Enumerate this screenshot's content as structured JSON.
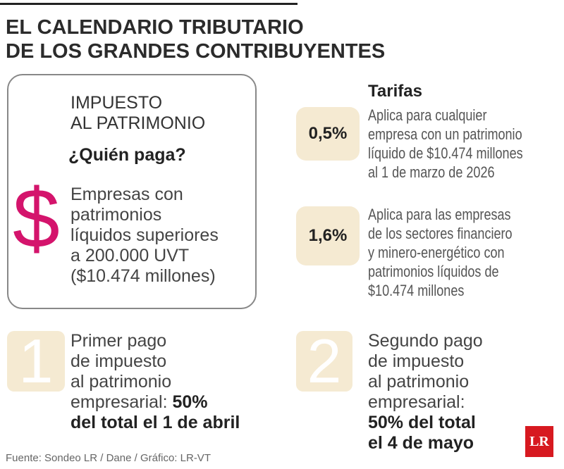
{
  "header": {
    "title": [
      "EL CALENDARIO TRIBUTARIO",
      "DE LOS GRANDES CONTRIBUYENTES"
    ]
  },
  "tax_box": {
    "heading": [
      "IMPUESTO",
      "AL PATRIMONIO"
    ],
    "question": "¿Quién paga?",
    "symbol": "$",
    "description": [
      "Empresas con",
      "patrimonios",
      "líquidos superiores",
      "a 200.000 UVT",
      "($10.474 millones)"
    ]
  },
  "rates": {
    "heading": "Tarifas",
    "items": [
      {
        "rate": "0,5%",
        "lines": [
          "Aplica para cualquier",
          "empresa con un patrimonio",
          "líquido de $10.474 millones",
          "al 1 de marzo de 2026"
        ]
      },
      {
        "rate": "1,6%",
        "lines": [
          "Aplica para las empresas",
          "de los sectores financiero",
          "y minero-energético con",
          "patrimonios líquidos de",
          "$10.474 millones"
        ]
      }
    ]
  },
  "payments": [
    {
      "number": "1",
      "lines": [
        [
          {
            "text": "Primer pago",
            "bold": false
          }
        ],
        [
          {
            "text": "de impuesto",
            "bold": false
          }
        ],
        [
          {
            "text": "al patrimonio",
            "bold": false
          }
        ],
        [
          {
            "text": "empresarial: ",
            "bold": false
          },
          {
            "text": "50%",
            "bold": true
          }
        ],
        [
          {
            "text": "del total el 1 de abril",
            "bold": true
          }
        ]
      ]
    },
    {
      "number": "2",
      "lines": [
        [
          {
            "text": "Segundo pago",
            "bold": false
          }
        ],
        [
          {
            "text": "de impuesto",
            "bold": false
          }
        ],
        [
          {
            "text": "al patrimonio",
            "bold": false
          }
        ],
        [
          {
            "text": "empresarial:",
            "bold": false
          }
        ],
        [
          {
            "text": "50% del total",
            "bold": true
          }
        ],
        [
          {
            "text": "el 4 de mayo",
            "bold": true
          }
        ]
      ]
    }
  ],
  "footer": {
    "source": "Fuente: Sondeo LR / Dane / Gráfico: LR-VT",
    "logo": "LR"
  }
}
